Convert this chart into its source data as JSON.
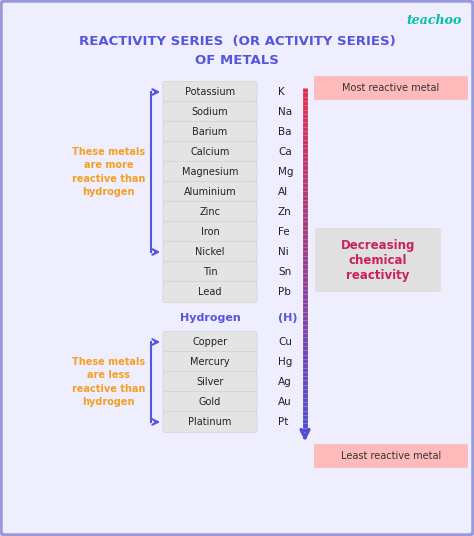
{
  "title_line1": "REACTIVITY SERIES  (OR ACTIVITY SERIES)",
  "title_line2": "OF METALS",
  "title_color": "#5555dd",
  "bg_color": "#eeeeff",
  "border_color": "#9999dd",
  "teachoo_color": "#00c0a0",
  "metals": [
    "Potassium",
    "Sodium",
    "Barium",
    "Calcium",
    "Magnesium",
    "Aluminium",
    "Zinc",
    "Iron",
    "Nickel",
    "Tin",
    "Lead"
  ],
  "symbols": [
    "K",
    "Na",
    "Ba",
    "Ca",
    "Mg",
    "Al",
    "Zn",
    "Fe",
    "Ni",
    "Sn",
    "Pb"
  ],
  "metals_below": [
    "Copper",
    "Mercury",
    "Silver",
    "Gold",
    "Platinum"
  ],
  "symbols_below": [
    "Cu",
    "Hg",
    "Ag",
    "Au",
    "Pt"
  ],
  "hydrogen_label": "Hydrogen",
  "hydrogen_symbol": "(H)",
  "hydrogen_color": "#5555dd",
  "box_color": "#e4e4e4",
  "box_edge_color": "#cccccc",
  "metal_text_color": "#222222",
  "symbol_text_color": "#222222",
  "orange_text_color": "#f5a020",
  "more_reactive_text": "These metals\nare more\nreactive than\nhydrogen",
  "less_reactive_text": "These metals\nare less\nreactive than\nhydrogen",
  "most_reactive_label": "Most reactive metal",
  "least_reactive_label": "Least reactive metal",
  "decreasing_label": "Decreasing\nchemical\nreactivity",
  "decreasing_color": "#cc2255",
  "bracket_color": "#5555dd",
  "most_reactive_bg": "#ffbbbb",
  "least_reactive_bg": "#ffbbbb",
  "decreasing_bg": "#e0e0e0"
}
